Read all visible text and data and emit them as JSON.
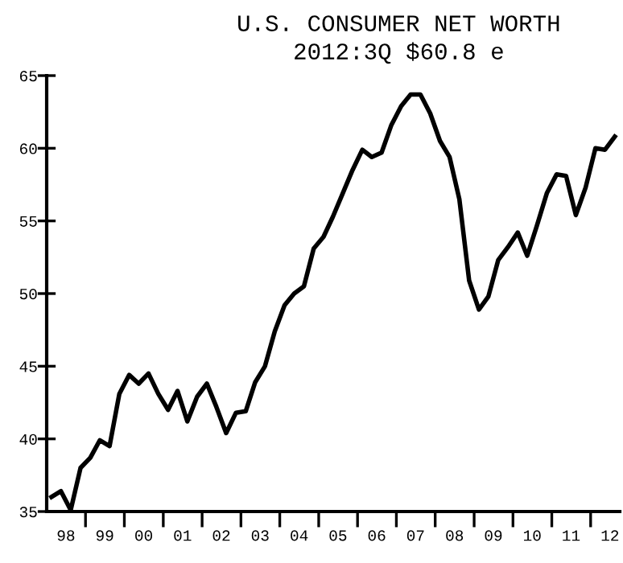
{
  "chart_data": {
    "type": "line",
    "title": "U.S. CONSUMER NET WORTH",
    "subtitle": "2012:3Q $60.8 e",
    "x": [
      "1998-02-15",
      "1998-05-15",
      "1998-08-15",
      "1998-11-15",
      "1999-02-15",
      "1999-05-15",
      "1999-08-15",
      "1999-11-15",
      "2000-02-15",
      "2000-05-15",
      "2000-08-15",
      "2000-11-15",
      "2001-02-15",
      "2001-05-15",
      "2001-08-15",
      "2001-11-15",
      "2002-02-15",
      "2002-05-15",
      "2002-08-15",
      "2002-11-15",
      "2003-02-15",
      "2003-05-15",
      "2003-08-15",
      "2003-11-15",
      "2004-02-15",
      "2004-05-15",
      "2004-08-15",
      "2004-11-15",
      "2005-02-15",
      "2005-05-15",
      "2005-08-15",
      "2005-11-15",
      "2006-02-15",
      "2006-05-15",
      "2006-08-15",
      "2006-11-15",
      "2007-02-15",
      "2007-05-15",
      "2007-08-15",
      "2007-11-15",
      "2008-02-15",
      "2008-05-15",
      "2008-08-15",
      "2008-11-15",
      "2009-02-15",
      "2009-05-15",
      "2009-08-15",
      "2009-11-15",
      "2010-02-15",
      "2010-05-15",
      "2010-08-15",
      "2010-11-15",
      "2011-02-15",
      "2011-05-15",
      "2011-08-15",
      "2011-11-15",
      "2012-02-15",
      "2012-05-15",
      "2012-08-15"
    ],
    "series": [
      {
        "color": "#000000",
        "values": [
          36.0,
          36.4,
          35.1,
          38.0,
          38.7,
          39.9,
          39.5,
          43.1,
          44.4,
          43.8,
          44.5,
          43.1,
          42.0,
          43.3,
          41.2,
          42.9,
          43.8,
          42.2,
          40.4,
          41.8,
          41.9,
          43.9,
          45.0,
          47.4,
          49.2,
          50.0,
          50.5,
          53.1,
          53.9,
          55.3,
          56.9,
          58.5,
          59.9,
          59.4,
          59.7,
          61.6,
          62.9,
          63.7,
          63.7,
          62.4,
          60.5,
          59.4,
          56.5,
          50.9,
          48.9,
          49.8,
          52.3,
          53.2,
          54.2,
          52.6,
          54.7,
          56.9,
          58.2,
          58.1,
          55.4,
          57.3,
          60.0,
          59.9,
          60.8
        ]
      }
    ],
    "xlim": [
      "1998-01-01",
      "2012-10-01"
    ],
    "xticks": [
      {
        "value": "1998-07-01",
        "label": "98"
      },
      {
        "value": "1999-01-01",
        "label": null
      },
      {
        "value": "1999-07-01",
        "label": "99"
      },
      {
        "value": "2000-01-01",
        "label": null
      },
      {
        "value": "2000-07-01",
        "label": "00"
      },
      {
        "value": "2001-01-01",
        "label": null
      },
      {
        "value": "2001-07-01",
        "label": "01"
      },
      {
        "value": "2002-01-01",
        "label": null
      },
      {
        "value": "2002-07-01",
        "label": "02"
      },
      {
        "value": "2003-01-01",
        "label": null
      },
      {
        "value": "2003-07-01",
        "label": "03"
      },
      {
        "value": "2004-01-01",
        "label": null
      },
      {
        "value": "2004-07-01",
        "label": "04"
      },
      {
        "value": "2005-01-01",
        "label": null
      },
      {
        "value": "2005-07-01",
        "label": "05"
      },
      {
        "value": "2006-01-01",
        "label": null
      },
      {
        "value": "2006-07-01",
        "label": "06"
      },
      {
        "value": "2007-01-01",
        "label": null
      },
      {
        "value": "2007-07-01",
        "label": "07"
      },
      {
        "value": "2008-01-01",
        "label": null
      },
      {
        "value": "2008-07-01",
        "label": "08"
      },
      {
        "value": "2009-01-01",
        "label": null
      },
      {
        "value": "2009-07-01",
        "label": "09"
      },
      {
        "value": "2010-01-01",
        "label": null
      },
      {
        "value": "2010-07-01",
        "label": "10"
      },
      {
        "value": "2011-01-01",
        "label": null
      },
      {
        "value": "2011-07-01",
        "label": "11"
      },
      {
        "value": "2012-01-01",
        "label": null
      },
      {
        "value": "2012-07-01",
        "label": "12"
      }
    ],
    "ylim": [
      35,
      65
    ],
    "yticks": [
      35,
      40,
      45,
      50,
      55,
      60,
      65
    ],
    "grid": false,
    "legend": false,
    "marker": "none",
    "line_style": "solid"
  }
}
